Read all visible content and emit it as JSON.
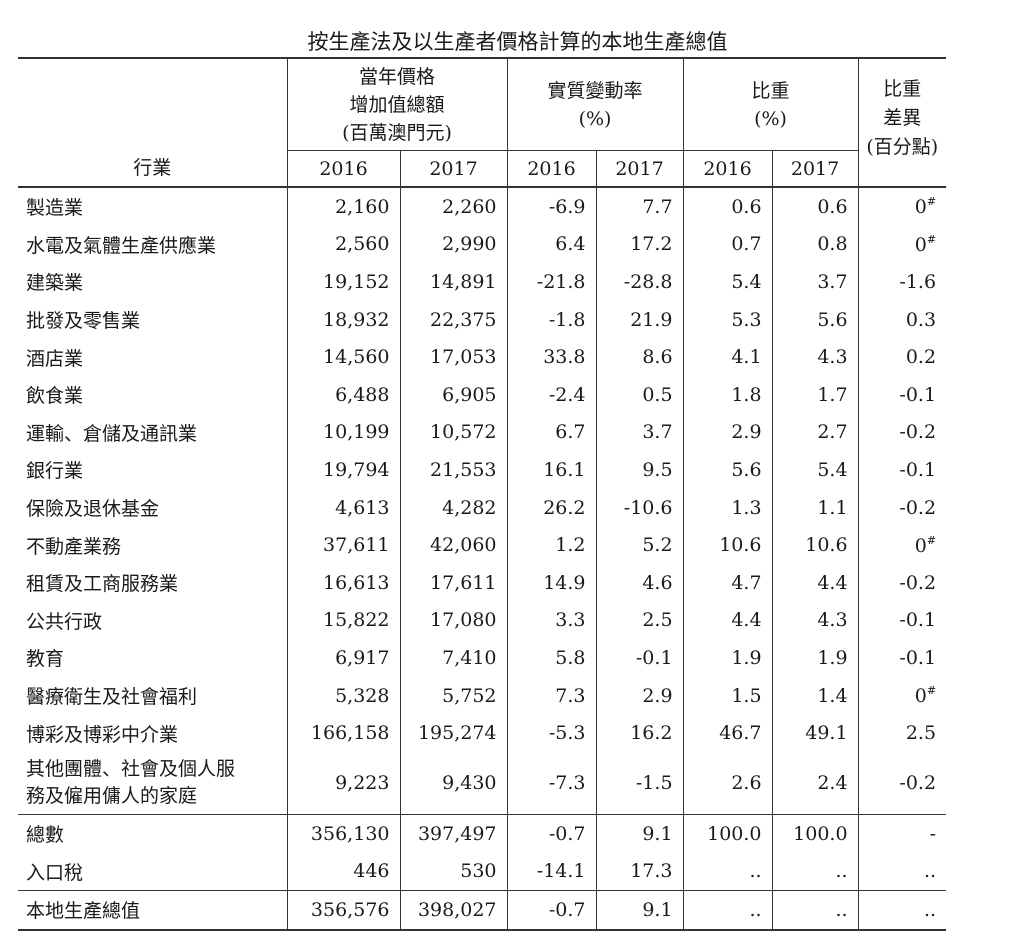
{
  "title": "按生產法及以生產者價格計算的本地生產總值",
  "header": {
    "row_label": "行業",
    "value_added_lines": [
      "當年價格",
      "增加值總額",
      "(百萬澳門元)"
    ],
    "real_change_lines": [
      "實質變動率",
      "(%)"
    ],
    "weight_lines": [
      "比重",
      "(%)"
    ],
    "weight_diff_lines": [
      "比重",
      "差異",
      "(百分點)"
    ],
    "years": [
      "2016",
      "2017",
      "2016",
      "2017",
      "2016",
      "2017"
    ]
  },
  "rows": [
    {
      "label": [
        "製造業"
      ],
      "cells": [
        "2,160",
        "2,260",
        "-6.9",
        "7.7",
        "0.6",
        "0.6",
        "0"
      ],
      "diff_mark": "#"
    },
    {
      "label": [
        "水電及氣體生產供應業"
      ],
      "cells": [
        "2,560",
        "2,990",
        "6.4",
        "17.2",
        "0.7",
        "0.8",
        "0"
      ],
      "diff_mark": "#"
    },
    {
      "label": [
        "建築業"
      ],
      "cells": [
        "19,152",
        "14,891",
        "-21.8",
        "-28.8",
        "5.4",
        "3.7",
        "-1.6"
      ]
    },
    {
      "label": [
        "批發及零售業"
      ],
      "cells": [
        "18,932",
        "22,375",
        "-1.8",
        "21.9",
        "5.3",
        "5.6",
        "0.3"
      ]
    },
    {
      "label": [
        "酒店業"
      ],
      "cells": [
        "14,560",
        "17,053",
        "33.8",
        "8.6",
        "4.1",
        "4.3",
        "0.2"
      ]
    },
    {
      "label": [
        "飲食業"
      ],
      "cells": [
        "6,488",
        "6,905",
        "-2.4",
        "0.5",
        "1.8",
        "1.7",
        "-0.1"
      ]
    },
    {
      "label": [
        "運輸、倉儲及通訊業"
      ],
      "cells": [
        "10,199",
        "10,572",
        "6.7",
        "3.7",
        "2.9",
        "2.7",
        "-0.2"
      ]
    },
    {
      "label": [
        "銀行業"
      ],
      "cells": [
        "19,794",
        "21,553",
        "16.1",
        "9.5",
        "5.6",
        "5.4",
        "-0.1"
      ]
    },
    {
      "label": [
        "保險及退休基金"
      ],
      "cells": [
        "4,613",
        "4,282",
        "26.2",
        "-10.6",
        "1.3",
        "1.1",
        "-0.2"
      ]
    },
    {
      "label": [
        "不動產業務"
      ],
      "cells": [
        "37,611",
        "42,060",
        "1.2",
        "5.2",
        "10.6",
        "10.6",
        "0"
      ],
      "diff_mark": "#"
    },
    {
      "label": [
        "租賃及工商服務業"
      ],
      "cells": [
        "16,613",
        "17,611",
        "14.9",
        "4.6",
        "4.7",
        "4.4",
        "-0.2"
      ]
    },
    {
      "label": [
        "公共行政"
      ],
      "cells": [
        "15,822",
        "17,080",
        "3.3",
        "2.5",
        "4.4",
        "4.3",
        "-0.1"
      ]
    },
    {
      "label": [
        "教育"
      ],
      "cells": [
        "6,917",
        "7,410",
        "5.8",
        "-0.1",
        "1.9",
        "1.9",
        "-0.1"
      ]
    },
    {
      "label": [
        "醫療衛生及社會福利"
      ],
      "cells": [
        "5,328",
        "5,752",
        "7.3",
        "2.9",
        "1.5",
        "1.4",
        "0"
      ],
      "diff_mark": "#"
    },
    {
      "label": [
        "博彩及博彩中介業"
      ],
      "cells": [
        "166,158",
        "195,274",
        "-5.3",
        "16.2",
        "46.7",
        "49.1",
        "2.5"
      ]
    },
    {
      "label": [
        "其他團體、社會及個人服",
        "務及僱用傭人的家庭"
      ],
      "cells": [
        "9,223",
        "9,430",
        "-7.3",
        "-1.5",
        "2.6",
        "2.4",
        "-0.2"
      ]
    }
  ],
  "totals": [
    {
      "label": [
        "總數"
      ],
      "cells": [
        "356,130",
        "397,497",
        "-0.7",
        "9.1",
        "100.0",
        "100.0",
        "-"
      ]
    },
    {
      "label": [
        "入口稅"
      ],
      "cells": [
        "446",
        "530",
        "-14.1",
        "17.3",
        "..",
        "..",
        ".."
      ]
    }
  ],
  "gdp": {
    "label": [
      "本地生產總值"
    ],
    "cells": [
      "356,576",
      "398,027",
      "-0.7",
      "9.1",
      "..",
      "..",
      ".."
    ]
  }
}
